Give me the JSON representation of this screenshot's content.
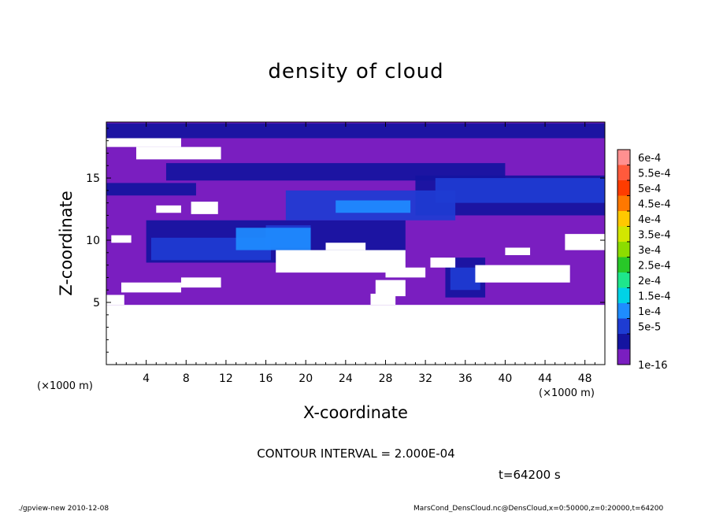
{
  "chart_data": {
    "type": "heatmap",
    "title": "density of cloud",
    "xlabel": "X-coordinate",
    "ylabel": "Z-coordinate",
    "x_unit_left": "(×1000 m)",
    "x_unit_right": "(×1000 m)",
    "xlim": [
      0,
      50
    ],
    "ylim": [
      0,
      19.5
    ],
    "x_ticks": [
      "4",
      "8",
      "12",
      "16",
      "20",
      "24",
      "28",
      "32",
      "36",
      "40",
      "44",
      "48"
    ],
    "x_tick_values": [
      4,
      8,
      12,
      16,
      20,
      24,
      28,
      32,
      36,
      40,
      44,
      48
    ],
    "y_ticks": [
      "5",
      "10",
      "15"
    ],
    "y_tick_values": [
      5,
      10,
      15
    ],
    "colorbar": {
      "labels": [
        "6e-4",
        "5.5e-4",
        "5e-4",
        "4.5e-4",
        "4e-4",
        "3.5e-4",
        "3e-4",
        "2.5e-4",
        "2e-4",
        "1.5e-4",
        "1e-4",
        "5e-5",
        "1e-16"
      ],
      "colors": [
        "#ff9090",
        "#ff5a3c",
        "#ff3c00",
        "#ff7800",
        "#ffc800",
        "#d2e600",
        "#8cdc00",
        "#28c828",
        "#1ee68c",
        "#00d2e6",
        "#1e8cff",
        "#1e3cd2",
        "#1414a0",
        "#7a1ec0"
      ]
    },
    "field": {
      "fill_z_range": [
        4.8,
        19.5
      ],
      "base_level": "1e-16",
      "clear_regions": [
        {
          "x": [
            0,
            7.5
          ],
          "z": [
            17.5,
            18.2
          ]
        },
        {
          "x": [
            3,
            11.5
          ],
          "z": [
            16.5,
            17.5
          ]
        },
        {
          "x": [
            8.5,
            11.2
          ],
          "z": [
            12.1,
            13.1
          ]
        },
        {
          "x": [
            5,
            7.5
          ],
          "z": [
            12.2,
            12.8
          ]
        },
        {
          "x": [
            22,
            26
          ],
          "z": [
            9.2,
            9.8
          ]
        },
        {
          "x": [
            17,
            30
          ],
          "z": [
            7.4,
            9.2
          ]
        },
        {
          "x": [
            28,
            32
          ],
          "z": [
            7.0,
            7.8
          ]
        },
        {
          "x": [
            32.5,
            35
          ],
          "z": [
            7.8,
            8.6
          ]
        },
        {
          "x": [
            37,
            46.5
          ],
          "z": [
            6.6,
            8.0
          ]
        },
        {
          "x": [
            40,
            42.5
          ],
          "z": [
            8.8,
            9.4
          ]
        },
        {
          "x": [
            46,
            50
          ],
          "z": [
            9.2,
            10.5
          ]
        },
        {
          "x": [
            0.5,
            2.5
          ],
          "z": [
            9.8,
            10.4
          ]
        },
        {
          "x": [
            1.5,
            7.5
          ],
          "z": [
            5.8,
            6.6
          ]
        },
        {
          "x": [
            7.5,
            11.5
          ],
          "z": [
            6.2,
            7.0
          ]
        },
        {
          "x": [
            27,
            30
          ],
          "z": [
            5.5,
            6.8
          ]
        },
        {
          "x": [
            0,
            1.8
          ],
          "z": [
            4.8,
            5.6
          ]
        },
        {
          "x": [
            26.5,
            29
          ],
          "z": [
            4.8,
            5.7
          ]
        }
      ],
      "bands": [
        {
          "level": "5e-5",
          "x": [
            0,
            50
          ],
          "z": [
            18.2,
            19.4
          ]
        },
        {
          "level": "5e-5",
          "x": [
            6,
            40
          ],
          "z": [
            14.8,
            16.2
          ]
        },
        {
          "level": "5e-5",
          "x": [
            0,
            9
          ],
          "z": [
            13.6,
            14.6
          ]
        },
        {
          "level": "5e-5",
          "x": [
            31,
            50
          ],
          "z": [
            12.0,
            15.2
          ]
        },
        {
          "level": "5e-5",
          "x": [
            4,
            30
          ],
          "z": [
            8.2,
            11.6
          ]
        },
        {
          "level": "5e-5",
          "x": [
            34,
            38
          ],
          "z": [
            5.4,
            8.6
          ]
        },
        {
          "level": "1e-4",
          "x": [
            4.5,
            16.5
          ],
          "z": [
            8.4,
            10.2
          ]
        },
        {
          "level": "1e-4",
          "x": [
            16,
            20.5
          ],
          "z": [
            9.4,
            11.2
          ]
        },
        {
          "level": "1e-4",
          "x": [
            18,
            35
          ],
          "z": [
            11.6,
            14.0
          ]
        },
        {
          "level": "1e-4",
          "x": [
            33,
            50
          ],
          "z": [
            13.0,
            15.0
          ]
        },
        {
          "level": "1e-4",
          "x": [
            34.5,
            37.5
          ],
          "z": [
            6.0,
            7.8
          ]
        },
        {
          "level": "1.5e-4",
          "x": [
            13,
            20.5
          ],
          "z": [
            9.2,
            11.0
          ]
        },
        {
          "level": "1.5e-4",
          "x": [
            23,
            30.5
          ],
          "z": [
            12.2,
            13.2
          ]
        }
      ]
    }
  },
  "labels": {
    "contour_interval": "CONTOUR INTERVAL = 2.000E-04",
    "timestamp": "t=64200 s",
    "footer_left": "./gpview-new   2010-12-08",
    "footer_right": "MarsCond_DensCloud.nc@DensCloud,x=0:50000,z=0:20000,t=64200"
  }
}
